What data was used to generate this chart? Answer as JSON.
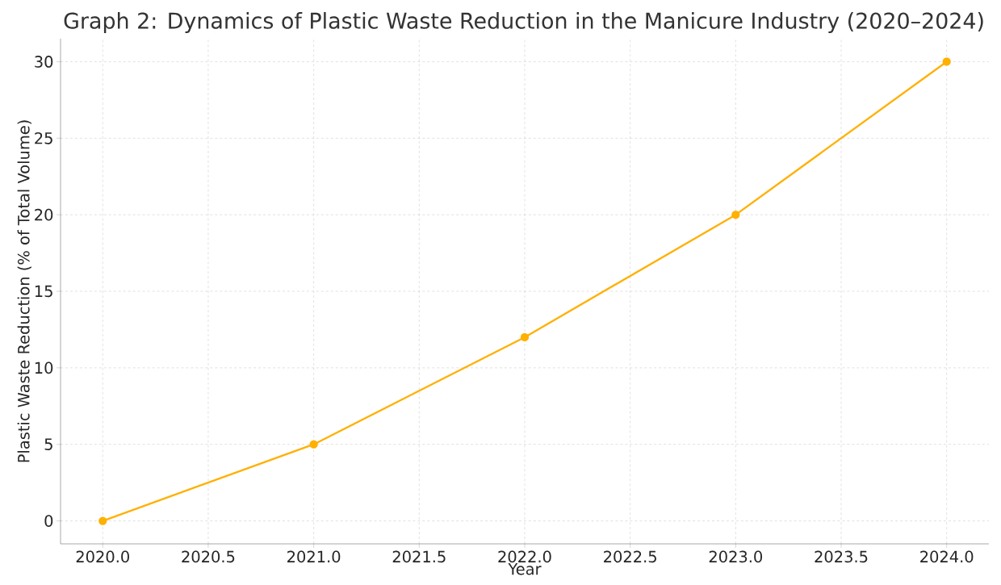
{
  "chart_data": {
    "type": "line",
    "title": "Graph 2: Dynamics of Plastic Waste Reduction in the Manicure Industry (2020–2024)",
    "xlabel": "Year",
    "ylabel": "Plastic Waste Reduction (% of Total Volume)",
    "x": [
      2020,
      2021,
      2022,
      2023,
      2024
    ],
    "series": [
      {
        "color": "#ffb000",
        "values": [
          0,
          5,
          12,
          20,
          30
        ]
      }
    ],
    "xlim": [
      2019.8,
      2024.2
    ],
    "ylim": [
      -1.5,
      31.5
    ],
    "xticks": [
      {
        "value": 2020,
        "label": "2020.0"
      },
      {
        "value": 2020.5,
        "label": "2020.5"
      },
      {
        "value": 2021,
        "label": "2021.0"
      },
      {
        "value": 2021.5,
        "label": "2021.5"
      },
      {
        "value": 2022,
        "label": "2022.0"
      },
      {
        "value": 2022.5,
        "label": "2022.5"
      },
      {
        "value": 2023,
        "label": "2023.0"
      },
      {
        "value": 2023.5,
        "label": "2023.5"
      },
      {
        "value": 2024,
        "label": "2024.0"
      }
    ],
    "yticks": [
      0,
      5,
      10,
      15,
      20,
      25,
      30
    ],
    "grid": true,
    "marker": "circle",
    "line_style": "solid"
  }
}
